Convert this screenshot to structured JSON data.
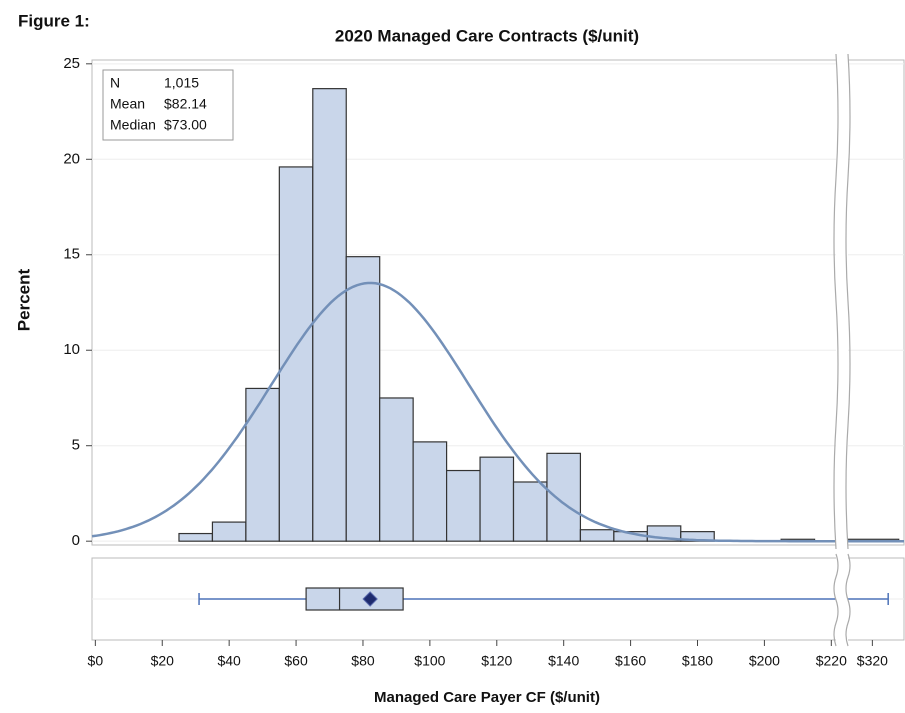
{
  "chart_data": {
    "type": "histogram",
    "figure_label": "Figure 1:",
    "title": "2020 Managed Care Contracts ($/unit)",
    "x_label": "Managed Care Payer CF ($/unit)",
    "y_label": "Percent",
    "bins": [
      15,
      25,
      35,
      45,
      55,
      65,
      75,
      85,
      95,
      105,
      115,
      125,
      135,
      145,
      155,
      165,
      175,
      185,
      195,
      205,
      215
    ],
    "values": [
      0,
      0.4,
      1.0,
      8.0,
      19.6,
      23.7,
      14.9,
      7.5,
      5.2,
      3.7,
      4.4,
      3.1,
      4.6,
      0.6,
      0.5,
      0.8,
      0.5,
      0,
      0,
      0.1
    ],
    "break_bins": [
      315,
      325
    ],
    "break_values": [
      0.1
    ],
    "color": "#c9d6ea",
    "curve_color": "#7390b8",
    "normal": {
      "mean": 82.14,
      "sd": 29.5
    },
    "box": {
      "min": 31,
      "q1": 63,
      "median": 73,
      "mean": 82.14,
      "q3": 92,
      "max": 323
    },
    "stats": [
      {
        "label": "N",
        "value": "1,015"
      },
      {
        "label": "Mean",
        "value": "$82.14"
      },
      {
        "label": "Median",
        "value": "$73.00"
      }
    ],
    "xlim": [
      -1,
      326
    ],
    "xbreak": [
      222,
      315
    ],
    "xticks": [
      {
        "value": 0,
        "label": "$0"
      },
      {
        "value": 20,
        "label": "$20"
      },
      {
        "value": 40,
        "label": "$40"
      },
      {
        "value": 60,
        "label": "$60"
      },
      {
        "value": 80,
        "label": "$80"
      },
      {
        "value": 100,
        "label": "$100"
      },
      {
        "value": 120,
        "label": "$120"
      },
      {
        "value": 140,
        "label": "$140"
      },
      {
        "value": 160,
        "label": "$160"
      },
      {
        "value": 180,
        "label": "$180"
      },
      {
        "value": 200,
        "label": "$200"
      },
      {
        "value": 220,
        "label": "$220"
      },
      {
        "value": 320,
        "label": "$320"
      }
    ],
    "ylim": [
      -0.2,
      25.2
    ],
    "yticks": [
      0,
      5,
      10,
      15,
      20,
      25
    ],
    "grid": true
  }
}
